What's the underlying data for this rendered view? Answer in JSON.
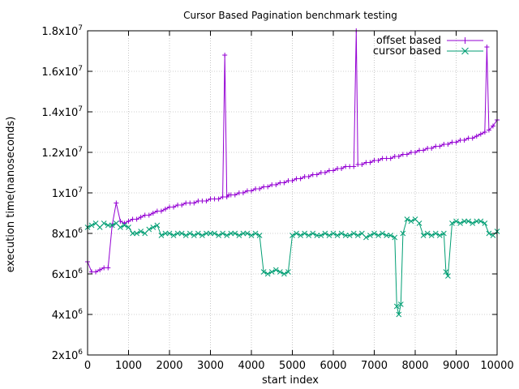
{
  "chart_data": {
    "type": "line",
    "title": "Cursor Based Pagination benchmark testing",
    "xlabel": "start index",
    "ylabel": "execution time(nanoseconds)",
    "xlim": [
      0,
      10000
    ],
    "ylim": [
      2000000,
      18000000
    ],
    "grid": true,
    "legend_position": "top-right",
    "x_ticks": [
      "0",
      "1000",
      "2000",
      "3000",
      "4000",
      "5000",
      "6000",
      "7000",
      "8000",
      "9000",
      "10000"
    ],
    "y_ticks": [
      {
        "value": 2000000,
        "mantissa": "2x10",
        "exp": "6"
      },
      {
        "value": 4000000,
        "mantissa": "4x10",
        "exp": "6"
      },
      {
        "value": 6000000,
        "mantissa": "6x10",
        "exp": "6"
      },
      {
        "value": 8000000,
        "mantissa": "8x10",
        "exp": "6"
      },
      {
        "value": 10000000,
        "mantissa": "1x10",
        "exp": "7"
      },
      {
        "value": 12000000,
        "mantissa": "1.2x10",
        "exp": "7"
      },
      {
        "value": 14000000,
        "mantissa": "1.4x10",
        "exp": "7"
      },
      {
        "value": 16000000,
        "mantissa": "1.6x10",
        "exp": "7"
      },
      {
        "value": 18000000,
        "mantissa": "1.8x10",
        "exp": "7"
      }
    ],
    "series": [
      {
        "name": "offset based",
        "color": "#9400D3",
        "marker": "plus",
        "x": [
          0,
          100,
          200,
          300,
          400,
          500,
          600,
          700,
          800,
          900,
          1000,
          1100,
          1200,
          1300,
          1400,
          1500,
          1600,
          1700,
          1800,
          1900,
          2000,
          2100,
          2200,
          2300,
          2400,
          2500,
          2600,
          2700,
          2800,
          2900,
          3000,
          3100,
          3200,
          3300,
          3350,
          3400,
          3450,
          3500,
          3600,
          3700,
          3800,
          3900,
          4000,
          4100,
          4200,
          4300,
          4400,
          4500,
          4600,
          4700,
          4800,
          4900,
          5000,
          5100,
          5200,
          5300,
          5400,
          5500,
          5600,
          5700,
          5800,
          5900,
          6000,
          6100,
          6200,
          6300,
          6400,
          6500,
          6560,
          6600,
          6700,
          6800,
          6900,
          7000,
          7100,
          7200,
          7300,
          7400,
          7500,
          7600,
          7700,
          7800,
          7900,
          8000,
          8100,
          8200,
          8300,
          8400,
          8500,
          8600,
          8700,
          8800,
          8900,
          9000,
          9100,
          9200,
          9300,
          9400,
          9500,
          9600,
          9700,
          9750,
          9800,
          9900,
          10000
        ],
        "values": [
          6600000,
          6100000,
          6100000,
          6200000,
          6300000,
          6300000,
          8400000,
          9500000,
          8600000,
          8500000,
          8600000,
          8700000,
          8700000,
          8800000,
          8900000,
          8900000,
          9000000,
          9100000,
          9100000,
          9200000,
          9300000,
          9300000,
          9400000,
          9400000,
          9500000,
          9500000,
          9500000,
          9600000,
          9600000,
          9600000,
          9700000,
          9700000,
          9700000,
          9800000,
          16800000,
          9800000,
          9900000,
          9900000,
          9900000,
          10000000,
          10000000,
          10100000,
          10100000,
          10200000,
          10200000,
          10300000,
          10300000,
          10400000,
          10400000,
          10500000,
          10500000,
          10600000,
          10600000,
          10700000,
          10700000,
          10800000,
          10800000,
          10900000,
          10900000,
          11000000,
          11000000,
          11100000,
          11100000,
          11200000,
          11200000,
          11300000,
          11300000,
          11300000,
          18000000,
          11400000,
          11400000,
          11500000,
          11500000,
          11600000,
          11600000,
          11700000,
          11700000,
          11700000,
          11800000,
          11800000,
          11900000,
          11900000,
          12000000,
          12000000,
          12100000,
          12100000,
          12200000,
          12200000,
          12300000,
          12300000,
          12400000,
          12400000,
          12500000,
          12500000,
          12600000,
          12600000,
          12700000,
          12700000,
          12800000,
          12900000,
          13000000,
          17200000,
          13100000,
          13300000,
          13600000
        ]
      },
      {
        "name": "cursor based",
        "color": "#009E73",
        "marker": "cross",
        "x": [
          0,
          100,
          200,
          300,
          400,
          500,
          600,
          700,
          800,
          900,
          1000,
          1100,
          1200,
          1300,
          1400,
          1500,
          1600,
          1700,
          1800,
          1900,
          2000,
          2100,
          2200,
          2300,
          2400,
          2500,
          2600,
          2700,
          2800,
          2900,
          3000,
          3100,
          3200,
          3300,
          3400,
          3500,
          3600,
          3700,
          3800,
          3900,
          4000,
          4100,
          4200,
          4300,
          4400,
          4500,
          4600,
          4700,
          4800,
          4900,
          5000,
          5100,
          5200,
          5300,
          5400,
          5500,
          5600,
          5700,
          5800,
          5900,
          6000,
          6100,
          6200,
          6300,
          6400,
          6500,
          6600,
          6700,
          6800,
          6900,
          7000,
          7100,
          7200,
          7300,
          7400,
          7500,
          7550,
          7600,
          7650,
          7700,
          7800,
          7900,
          8000,
          8100,
          8200,
          8300,
          8400,
          8500,
          8600,
          8700,
          8750,
          8800,
          8900,
          9000,
          9100,
          9200,
          9300,
          9400,
          9500,
          9600,
          9700,
          9800,
          9900,
          10000
        ],
        "values": [
          8300000,
          8400000,
          8500000,
          8300000,
          8500000,
          8400000,
          8400000,
          8500000,
          8300000,
          8400000,
          8300000,
          8000000,
          8000000,
          8100000,
          8000000,
          8200000,
          8300000,
          8400000,
          7900000,
          8000000,
          8000000,
          7900000,
          8000000,
          8000000,
          7900000,
          8000000,
          7900000,
          8000000,
          7900000,
          8000000,
          8000000,
          8000000,
          7900000,
          8000000,
          7900000,
          8000000,
          8000000,
          7900000,
          8000000,
          8000000,
          7900000,
          8000000,
          7900000,
          6100000,
          6000000,
          6100000,
          6200000,
          6100000,
          6000000,
          6100000,
          7900000,
          8000000,
          7900000,
          8000000,
          7900000,
          8000000,
          7900000,
          7900000,
          8000000,
          7900000,
          8000000,
          7900000,
          8000000,
          7900000,
          7900000,
          8000000,
          7900000,
          8000000,
          7800000,
          7900000,
          8000000,
          7900000,
          8000000,
          7900000,
          7900000,
          7800000,
          4400000,
          4000000,
          4500000,
          8000000,
          8700000,
          8600000,
          8700000,
          8500000,
          7900000,
          8000000,
          7900000,
          8000000,
          7900000,
          8000000,
          6100000,
          5900000,
          8500000,
          8600000,
          8500000,
          8600000,
          8600000,
          8500000,
          8600000,
          8600000,
          8500000,
          8000000,
          7900000,
          8100000
        ]
      }
    ]
  }
}
